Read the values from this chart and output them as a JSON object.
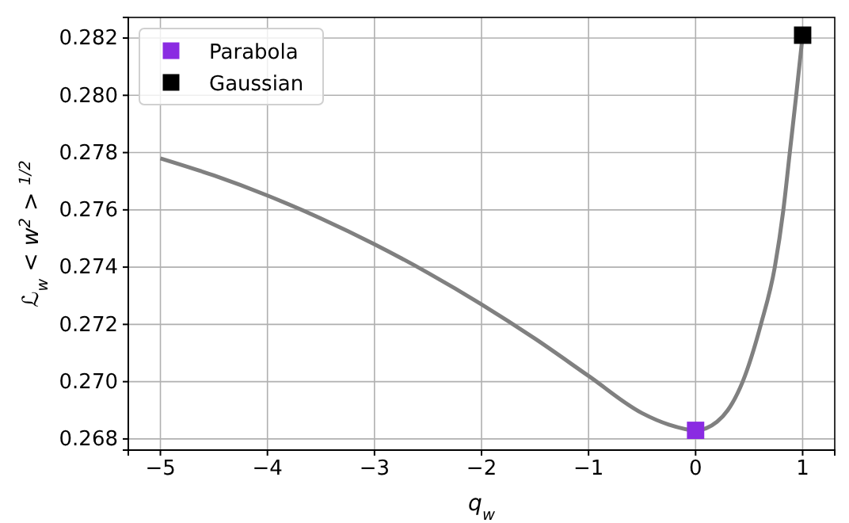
{
  "chart_data": {
    "type": "line",
    "xlabel": "q$_{w}$",
    "ylabel": "ℒ$_{w}$ < w$^{2}$ > $^{1/2}$",
    "xlim": [
      -5.3,
      1.3
    ],
    "xticks": [
      {
        "value": -5,
        "label": "−5"
      },
      {
        "value": -4,
        "label": "−4"
      },
      {
        "value": -3,
        "label": "−3"
      },
      {
        "value": -2,
        "label": "−2"
      },
      {
        "value": -1,
        "label": "−1"
      },
      0,
      1
    ],
    "ylim": [
      0.26761,
      0.28272
    ],
    "yticks": [
      {
        "value": 0.268,
        "label": "0.268"
      },
      {
        "value": 0.27,
        "label": "0.270"
      },
      {
        "value": 0.272,
        "label": "0.272"
      },
      {
        "value": 0.274,
        "label": "0.274"
      },
      {
        "value": 0.276,
        "label": "0.276"
      },
      {
        "value": 0.278,
        "label": "0.278"
      },
      {
        "value": 0.28,
        "label": "0.280"
      },
      {
        "value": 0.282,
        "label": "0.282"
      }
    ],
    "grid": true,
    "legend": "top left",
    "series": [
      {
        "type": "line",
        "color": "#808080",
        "marker": "none",
        "x": [
          -5,
          -4.5,
          -4,
          -3.5,
          -3,
          -2.5,
          -2,
          -1.5,
          -1,
          -0.5,
          -0.25,
          0,
          0.2,
          0.3,
          0.44,
          0.61,
          0.74,
          0.82,
          0.88,
          0.94,
          1
        ],
        "values": [
          0.2778,
          0.2772,
          0.2765,
          0.2757,
          0.2748,
          0.2738,
          0.2727,
          0.2715,
          0.2702,
          0.2689,
          0.2685,
          0.2683,
          0.2686,
          0.269,
          0.27,
          0.272,
          0.274,
          0.276,
          0.278,
          0.28,
          0.2821
        ]
      },
      {
        "type": "scatter",
        "name": "Parabola",
        "color": "#8a2be2",
        "marker": "square",
        "x": [
          0
        ],
        "values": [
          0.2683
        ]
      },
      {
        "type": "scatter",
        "name": "Gaussian",
        "color": "#000000",
        "marker": "square",
        "x": [
          1
        ],
        "values": [
          0.2821
        ]
      }
    ]
  }
}
